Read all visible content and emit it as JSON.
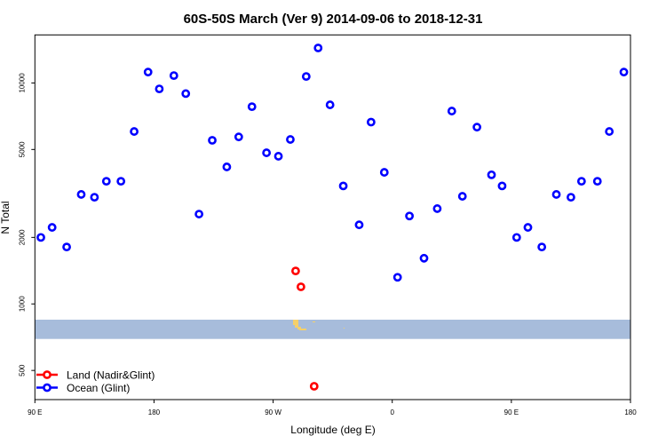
{
  "chart_data": {
    "type": "scatter",
    "title": "60S-50S March (Ver 9)   2014-09-06 to 2018-12-31",
    "xlabel": "Longitude (deg E)",
    "ylabel": "N Total",
    "y_scale": "log",
    "xlim": [
      90,
      540
    ],
    "ylim": [
      369,
      16500
    ],
    "x_ticks": [
      {
        "value": 90,
        "label": "90 E"
      },
      {
        "value": 180,
        "label": "180"
      },
      {
        "value": 270,
        "label": "90 W"
      },
      {
        "value": 360,
        "label": "0"
      },
      {
        "value": 450,
        "label": "90 E"
      },
      {
        "value": 540,
        "label": "180"
      }
    ],
    "y_ticks": [
      {
        "value": 500,
        "label": "500"
      },
      {
        "value": 1000,
        "label": "1000"
      },
      {
        "value": 2000,
        "label": "2000"
      },
      {
        "value": 5000,
        "label": "5000"
      },
      {
        "value": 10000,
        "label": "10000"
      }
    ],
    "grid": false,
    "legend_position": "bottom-left",
    "map_strip_colors": {
      "ocean": "#a7bcdb",
      "land": "#f5d06a"
    },
    "series": [
      {
        "name": "Land (Nadir&Glint)",
        "color": "#ff0000",
        "points": [
          [
            287,
            1410
          ],
          [
            291,
            1195
          ],
          [
            301,
            424
          ]
        ]
      },
      {
        "name": "Ocean (Glint)",
        "color": "#0000ff",
        "points": [
          [
            94.5,
            2000
          ],
          [
            103,
            2220
          ],
          [
            114,
            1810
          ],
          [
            125,
            3130
          ],
          [
            135,
            3040
          ],
          [
            144,
            3590
          ],
          [
            155,
            3590
          ],
          [
            165,
            6030
          ],
          [
            175.5,
            11200
          ],
          [
            184,
            9400
          ],
          [
            195,
            10800
          ],
          [
            204,
            8950
          ],
          [
            214,
            2550
          ],
          [
            224,
            5500
          ],
          [
            235,
            4170
          ],
          [
            244,
            5700
          ],
          [
            254,
            7810
          ],
          [
            265,
            4830
          ],
          [
            274,
            4660
          ],
          [
            283,
            5550
          ],
          [
            295,
            10700
          ],
          [
            304,
            14400
          ],
          [
            313,
            7960
          ],
          [
            323,
            3420
          ],
          [
            335,
            2280
          ],
          [
            344,
            6650
          ],
          [
            354,
            3940
          ],
          [
            364,
            1320
          ],
          [
            373,
            2500
          ],
          [
            384,
            1610
          ],
          [
            394,
            2700
          ],
          [
            405,
            7460
          ],
          [
            413,
            3070
          ],
          [
            424,
            6310
          ],
          [
            435,
            3840
          ],
          [
            443,
            3420
          ],
          [
            454,
            2000
          ],
          [
            462.5,
            2220
          ],
          [
            473,
            1810
          ],
          [
            484,
            3130
          ],
          [
            495,
            3040
          ],
          [
            503,
            3590
          ],
          [
            515,
            3590
          ],
          [
            524,
            6030
          ],
          [
            535,
            11200
          ]
        ]
      }
    ]
  }
}
